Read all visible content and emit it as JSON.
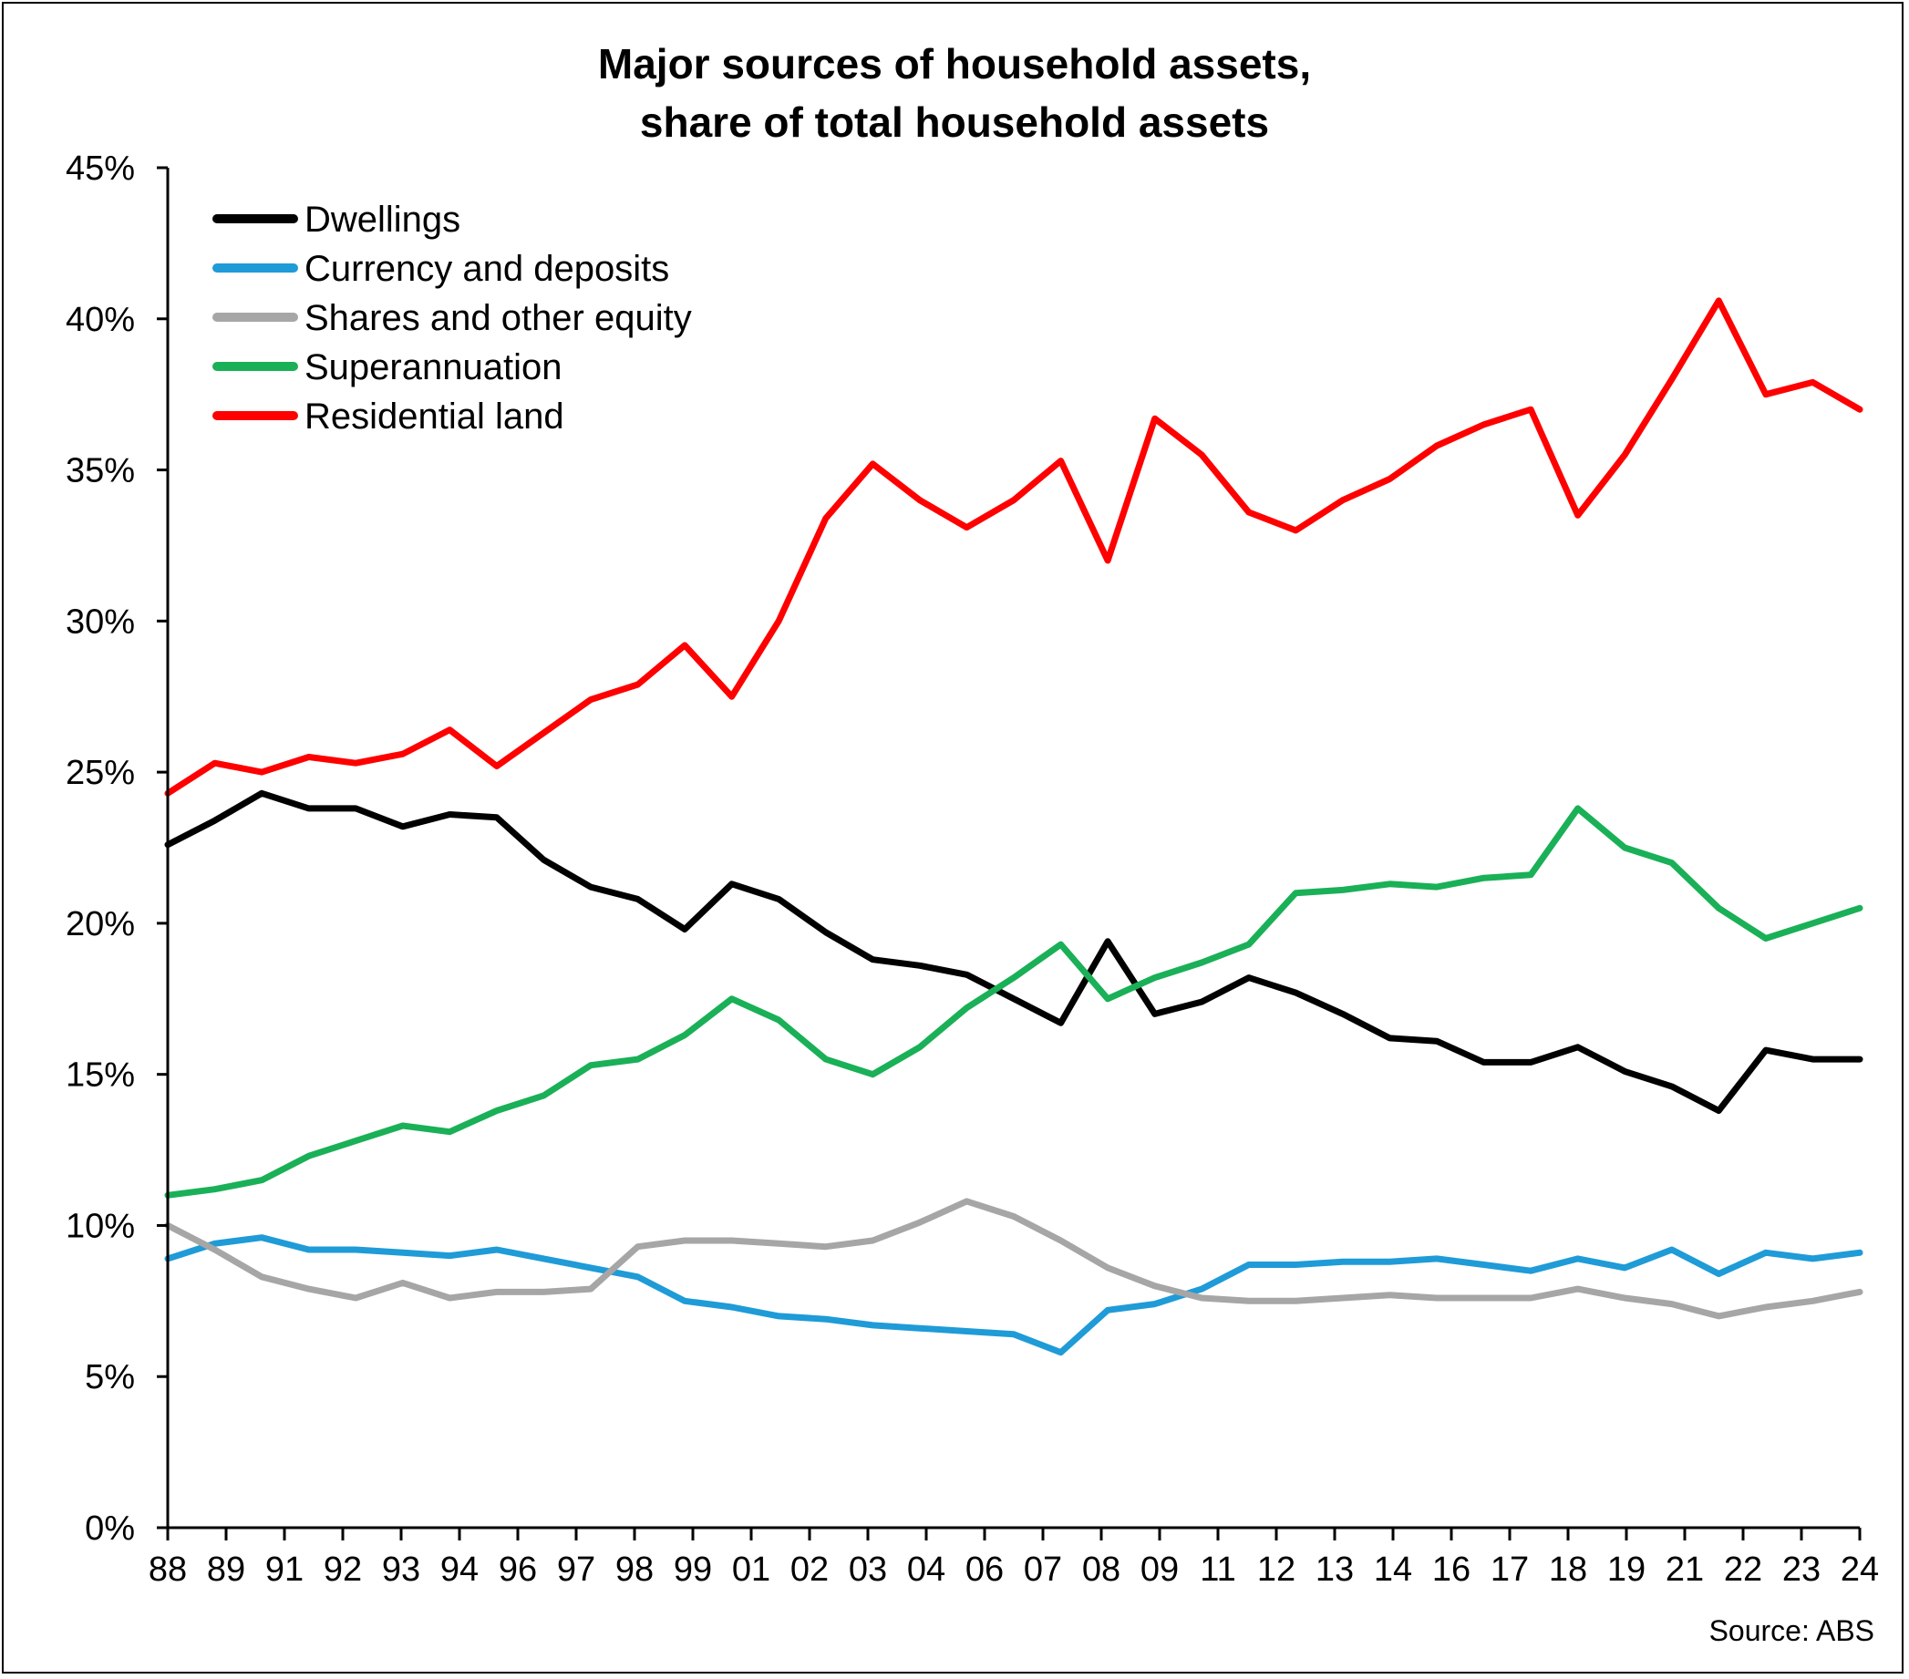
{
  "chart_data": {
    "type": "line",
    "title_line1": "Major sources of household assets,",
    "title_line2": "share of total household assets",
    "xlabel": "",
    "ylabel": "",
    "source": "Source: ABS",
    "ylim": [
      0,
      45
    ],
    "y_ticks": [
      "0%",
      "5%",
      "10%",
      "15%",
      "20%",
      "25%",
      "30%",
      "35%",
      "40%",
      "45%"
    ],
    "x_tick_labels": [
      "88",
      "89",
      "91",
      "92",
      "93",
      "94",
      "96",
      "97",
      "98",
      "99",
      "01",
      "02",
      "03",
      "04",
      "06",
      "07",
      "08",
      "09",
      "11",
      "12",
      "13",
      "14",
      "16",
      "17",
      "18",
      "19",
      "21",
      "22",
      "23",
      "24"
    ],
    "x_range_years": [
      1988.5,
      2024.5
    ],
    "grid": false,
    "legend_position": "top-left",
    "series": [
      {
        "name": "Dwellings",
        "color": "#000000",
        "points": [
          [
            1988.5,
            22.6
          ],
          [
            1989.5,
            23.4
          ],
          [
            1990.5,
            24.3
          ],
          [
            1991.5,
            23.8
          ],
          [
            1992.5,
            23.8
          ],
          [
            1993.5,
            23.2
          ],
          [
            1994.5,
            23.6
          ],
          [
            1995.5,
            23.5
          ],
          [
            1996.5,
            22.1
          ],
          [
            1997.5,
            21.2
          ],
          [
            1998.5,
            20.8
          ],
          [
            1999.5,
            19.8
          ],
          [
            2000.5,
            21.3
          ],
          [
            2001.5,
            20.8
          ],
          [
            2002.5,
            19.7
          ],
          [
            2003.5,
            18.8
          ],
          [
            2004.5,
            18.6
          ],
          [
            2005.5,
            18.3
          ],
          [
            2006.5,
            17.5
          ],
          [
            2007.5,
            16.7
          ],
          [
            2008.5,
            19.4
          ],
          [
            2009.5,
            17.0
          ],
          [
            2010.5,
            17.4
          ],
          [
            2011.5,
            18.2
          ],
          [
            2012.5,
            17.7
          ],
          [
            2013.5,
            17.0
          ],
          [
            2014.5,
            16.2
          ],
          [
            2015.5,
            16.1
          ],
          [
            2016.5,
            15.4
          ],
          [
            2017.5,
            15.4
          ],
          [
            2018.5,
            15.9
          ],
          [
            2019.5,
            15.1
          ],
          [
            2020.5,
            14.6
          ],
          [
            2021.5,
            13.8
          ],
          [
            2022.5,
            15.8
          ],
          [
            2023.5,
            15.5
          ],
          [
            2024.5,
            15.5
          ]
        ]
      },
      {
        "name": "Currency and deposits",
        "color": "#1f9bd7",
        "points": [
          [
            1988.5,
            8.9
          ],
          [
            1989.5,
            9.4
          ],
          [
            1990.5,
            9.6
          ],
          [
            1991.5,
            9.2
          ],
          [
            1992.5,
            9.2
          ],
          [
            1993.5,
            9.1
          ],
          [
            1994.5,
            9.0
          ],
          [
            1995.5,
            9.2
          ],
          [
            1996.5,
            8.9
          ],
          [
            1997.5,
            8.6
          ],
          [
            1998.5,
            8.3
          ],
          [
            1999.5,
            7.5
          ],
          [
            2000.5,
            7.3
          ],
          [
            2001.5,
            7.0
          ],
          [
            2002.5,
            6.9
          ],
          [
            2003.5,
            6.7
          ],
          [
            2004.5,
            6.6
          ],
          [
            2005.5,
            6.5
          ],
          [
            2006.5,
            6.4
          ],
          [
            2007.5,
            5.8
          ],
          [
            2008.5,
            7.2
          ],
          [
            2009.5,
            7.4
          ],
          [
            2010.5,
            7.9
          ],
          [
            2011.5,
            8.7
          ],
          [
            2012.5,
            8.7
          ],
          [
            2013.5,
            8.8
          ],
          [
            2014.5,
            8.8
          ],
          [
            2015.5,
            8.9
          ],
          [
            2016.5,
            8.7
          ],
          [
            2017.5,
            8.5
          ],
          [
            2018.5,
            8.9
          ],
          [
            2019.5,
            8.6
          ],
          [
            2020.5,
            9.2
          ],
          [
            2021.5,
            8.4
          ],
          [
            2022.5,
            9.1
          ],
          [
            2023.5,
            8.9
          ],
          [
            2024.5,
            9.1
          ]
        ]
      },
      {
        "name": "Shares and other equity",
        "color": "#a6a6a6",
        "points": [
          [
            1988.5,
            10.0
          ],
          [
            1989.5,
            9.2
          ],
          [
            1990.5,
            8.3
          ],
          [
            1991.5,
            7.9
          ],
          [
            1992.5,
            7.6
          ],
          [
            1993.5,
            8.1
          ],
          [
            1994.5,
            7.6
          ],
          [
            1995.5,
            7.8
          ],
          [
            1996.5,
            7.8
          ],
          [
            1997.5,
            7.9
          ],
          [
            1998.5,
            9.3
          ],
          [
            1999.5,
            9.5
          ],
          [
            2000.5,
            9.5
          ],
          [
            2001.5,
            9.4
          ],
          [
            2002.5,
            9.3
          ],
          [
            2003.5,
            9.5
          ],
          [
            2004.5,
            10.1
          ],
          [
            2005.5,
            10.8
          ],
          [
            2006.5,
            10.3
          ],
          [
            2007.5,
            9.5
          ],
          [
            2008.5,
            8.6
          ],
          [
            2009.5,
            8.0
          ],
          [
            2010.5,
            7.6
          ],
          [
            2011.5,
            7.5
          ],
          [
            2012.5,
            7.5
          ],
          [
            2013.5,
            7.6
          ],
          [
            2014.5,
            7.7
          ],
          [
            2015.5,
            7.6
          ],
          [
            2016.5,
            7.6
          ],
          [
            2017.5,
            7.6
          ],
          [
            2018.5,
            7.9
          ],
          [
            2019.5,
            7.6
          ],
          [
            2020.5,
            7.4
          ],
          [
            2021.5,
            7.0
          ],
          [
            2022.5,
            7.3
          ],
          [
            2023.5,
            7.5
          ],
          [
            2024.5,
            7.8
          ]
        ]
      },
      {
        "name": "Superannuation",
        "color": "#1ab057",
        "points": [
          [
            1988.5,
            11.0
          ],
          [
            1989.5,
            11.2
          ],
          [
            1990.5,
            11.5
          ],
          [
            1991.5,
            12.3
          ],
          [
            1992.5,
            12.8
          ],
          [
            1993.5,
            13.3
          ],
          [
            1994.5,
            13.1
          ],
          [
            1995.5,
            13.8
          ],
          [
            1996.5,
            14.3
          ],
          [
            1997.5,
            15.3
          ],
          [
            1998.5,
            15.5
          ],
          [
            1999.5,
            16.3
          ],
          [
            2000.5,
            17.5
          ],
          [
            2001.5,
            16.8
          ],
          [
            2002.5,
            15.5
          ],
          [
            2003.5,
            15.0
          ],
          [
            2004.5,
            15.9
          ],
          [
            2005.5,
            17.2
          ],
          [
            2006.5,
            18.2
          ],
          [
            2007.5,
            19.3
          ],
          [
            2008.5,
            17.5
          ],
          [
            2009.5,
            18.2
          ],
          [
            2010.5,
            18.7
          ],
          [
            2011.5,
            19.3
          ],
          [
            2012.5,
            21.0
          ],
          [
            2013.5,
            21.1
          ],
          [
            2014.5,
            21.3
          ],
          [
            2015.5,
            21.2
          ],
          [
            2016.5,
            21.5
          ],
          [
            2017.5,
            21.6
          ],
          [
            2018.5,
            23.8
          ],
          [
            2019.5,
            22.5
          ],
          [
            2020.5,
            22.0
          ],
          [
            2021.5,
            20.5
          ],
          [
            2022.5,
            19.5
          ],
          [
            2023.5,
            20.0
          ],
          [
            2024.5,
            20.5
          ]
        ]
      },
      {
        "name": "Residential land",
        "color": "#ff0000",
        "points": [
          [
            1988.5,
            24.3
          ],
          [
            1989.5,
            25.3
          ],
          [
            1990.5,
            25.0
          ],
          [
            1991.5,
            25.5
          ],
          [
            1992.5,
            25.3
          ],
          [
            1993.5,
            25.6
          ],
          [
            1994.5,
            26.4
          ],
          [
            1995.5,
            25.2
          ],
          [
            1996.5,
            26.3
          ],
          [
            1997.5,
            27.4
          ],
          [
            1998.5,
            27.9
          ],
          [
            1999.5,
            29.2
          ],
          [
            2000.5,
            27.5
          ],
          [
            2001.5,
            30.0
          ],
          [
            2002.5,
            33.4
          ],
          [
            2003.5,
            35.2
          ],
          [
            2004.5,
            34.0
          ],
          [
            2005.5,
            33.1
          ],
          [
            2006.5,
            34.0
          ],
          [
            2007.5,
            35.3
          ],
          [
            2008.5,
            32.0
          ],
          [
            2009.5,
            36.7
          ],
          [
            2010.5,
            35.5
          ],
          [
            2011.5,
            33.6
          ],
          [
            2012.5,
            33.0
          ],
          [
            2013.5,
            34.0
          ],
          [
            2014.5,
            34.7
          ],
          [
            2015.5,
            35.8
          ],
          [
            2016.5,
            36.5
          ],
          [
            2017.5,
            37.0
          ],
          [
            2018.5,
            33.5
          ],
          [
            2019.5,
            35.5
          ],
          [
            2020.5,
            38.0
          ],
          [
            2021.5,
            40.6
          ],
          [
            2022.5,
            37.5
          ],
          [
            2023.5,
            37.9
          ],
          [
            2024.5,
            37.0
          ]
        ]
      }
    ]
  }
}
